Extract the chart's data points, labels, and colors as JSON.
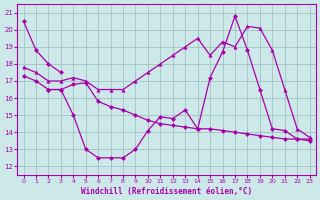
{
  "title": "Windchill (Refroidissement éolien,°C)",
  "bg_color": "#cce8e8",
  "line_color": "#aa00aa",
  "grid_color": "#99bbbb",
  "xlim": [
    -0.5,
    23.5
  ],
  "ylim": [
    11.5,
    21.5
  ],
  "xtick_vals": [
    0,
    1,
    2,
    3,
    4,
    5,
    6,
    7,
    8,
    9,
    10,
    11,
    12,
    13,
    14,
    15,
    16,
    17,
    18,
    19,
    20,
    21,
    22,
    23
  ],
  "xtick_labels": [
    "0",
    "1",
    "2",
    "3",
    "4",
    "5",
    "6",
    "7",
    "8",
    "9",
    "10",
    "11",
    "12",
    "13",
    "14",
    "15",
    "16",
    "17",
    "18",
    "19",
    "20",
    "21",
    "22",
    "23"
  ],
  "ytick_vals": [
    12,
    13,
    14,
    15,
    16,
    17,
    18,
    19,
    20,
    21
  ],
  "series1_x": [
    0,
    1,
    2,
    3
  ],
  "series1_y": [
    20.5,
    18.8,
    18.0,
    17.5
  ],
  "series2_x": [
    2,
    3,
    4,
    5,
    6,
    7,
    8,
    9,
    10,
    11,
    12,
    13,
    14,
    15,
    16,
    17,
    18,
    19,
    20,
    21,
    22,
    23
  ],
  "series2_y": [
    16.5,
    16.5,
    15.0,
    13.0,
    12.5,
    12.5,
    12.5,
    13.0,
    14.1,
    14.9,
    14.8,
    15.3,
    14.2,
    17.2,
    18.7,
    20.8,
    18.8,
    16.5,
    14.2,
    14.1,
    13.6,
    13.6
  ],
  "series3_x": [
    0,
    1,
    2,
    3,
    4,
    5,
    6,
    7,
    8,
    9,
    10,
    11,
    12,
    13,
    14,
    15,
    16,
    17,
    18,
    19,
    20,
    21,
    22,
    23
  ],
  "series3_y": [
    17.3,
    17.0,
    16.5,
    16.5,
    16.8,
    16.9,
    15.8,
    15.5,
    15.3,
    15.0,
    14.7,
    14.5,
    14.4,
    14.3,
    14.2,
    14.2,
    14.1,
    14.0,
    13.9,
    13.8,
    13.7,
    13.6,
    13.6,
    13.5
  ],
  "series4_x": [
    0,
    1,
    2,
    3,
    4,
    5,
    6,
    7,
    8,
    9,
    10,
    11,
    12,
    13,
    14,
    15,
    16,
    17,
    18,
    19,
    20,
    21,
    22,
    23
  ],
  "series4_y": [
    17.8,
    17.5,
    17.0,
    17.0,
    17.2,
    17.0,
    16.5,
    16.5,
    16.5,
    17.0,
    17.5,
    18.0,
    18.5,
    19.0,
    19.5,
    18.5,
    19.3,
    19.0,
    20.2,
    20.1,
    18.8,
    16.5,
    14.2,
    13.7
  ]
}
